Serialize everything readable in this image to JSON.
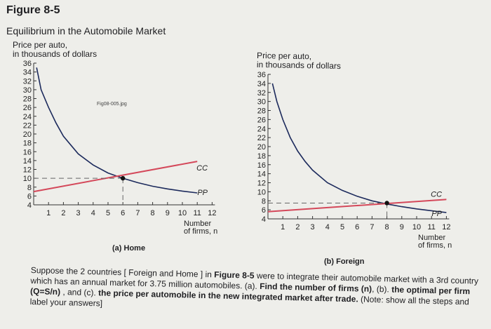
{
  "figure": {
    "title": "Figure 8-5",
    "subtitle": "Equilibrium in the Automobile Market",
    "file_tag": "Fig08-005.jpg"
  },
  "chart_data": [
    {
      "type": "line",
      "panel": "(a) Home",
      "ylabel": [
        "Price per auto,",
        "in thousands of dollars"
      ],
      "xlabel": [
        "Number",
        "of firms, n"
      ],
      "ylim": [
        4,
        36
      ],
      "xlim": [
        0,
        12
      ],
      "yticks": [
        4,
        6,
        8,
        10,
        12,
        14,
        16,
        18,
        20,
        22,
        24,
        26,
        28,
        30,
        32,
        34,
        36
      ],
      "xticks": [
        1,
        2,
        3,
        4,
        5,
        6,
        7,
        8,
        9,
        10,
        11,
        12
      ],
      "series": [
        {
          "name": "CC",
          "color": "#1c2a5c",
          "x": [
            0.2,
            0.5,
            1,
            1.5,
            2,
            2.5,
            3,
            4,
            5,
            6,
            7,
            8,
            9,
            10,
            11
          ],
          "y": [
            35,
            30,
            26,
            22.5,
            19.5,
            17.5,
            15.5,
            13,
            11.2,
            10,
            9,
            8.2,
            7.6,
            7.1,
            6.7
          ]
        },
        {
          "name": "PP",
          "color": "#d4485a",
          "x": [
            0,
            11
          ],
          "y": [
            7,
            13.8
          ]
        }
      ],
      "equilibrium": {
        "x": 6,
        "y": 10
      },
      "curve_labels": {
        "CC": "CC",
        "PP": "PP"
      }
    },
    {
      "type": "line",
      "panel": "(b) Foreign",
      "ylabel": [
        "Price per auto,",
        "in thousands of dollars"
      ],
      "xlabel": [
        "Number",
        "of firms, n"
      ],
      "ylim": [
        4,
        36
      ],
      "xlim": [
        0,
        12
      ],
      "yticks": [
        4,
        6,
        8,
        10,
        12,
        14,
        16,
        18,
        20,
        22,
        24,
        26,
        28,
        30,
        32,
        34,
        36
      ],
      "xticks": [
        1,
        2,
        3,
        4,
        5,
        6,
        7,
        8,
        9,
        10,
        11,
        12
      ],
      "series": [
        {
          "name": "CC",
          "color": "#1c2a5c",
          "x": [
            0.3,
            0.6,
            1,
            1.5,
            2,
            2.5,
            3,
            4,
            5,
            6,
            7,
            8,
            9,
            10,
            11,
            12
          ],
          "y": [
            34,
            30,
            26,
            22,
            19,
            16.7,
            14.8,
            12,
            10.3,
            9,
            8,
            7.3,
            6.7,
            6.2,
            5.8,
            5.4
          ]
        },
        {
          "name": "PP",
          "color": "#d4485a",
          "x": [
            0,
            12
          ],
          "y": [
            5.6,
            8.3
          ]
        }
      ],
      "equilibrium": {
        "x": 8,
        "y": 7.5
      },
      "curve_labels": {
        "CC": "CC",
        "PP": "PP"
      }
    }
  ],
  "question": {
    "intro": "Suppose the 2 countries [ Foreign and Home ] in ",
    "fig_ref": "Figure 8-5",
    "mid1": " were to integrate their automobile market with a 3rd country which has an annual market for 3.75 million automobiles. (a). ",
    "ask_a": "Find the number of firms (n)",
    "mid2": ", (b). ",
    "ask_b": "the optimal per firm (Q=S/n)",
    "mid3": " , and (c). ",
    "ask_c": "the price per automobile in the new integrated market after trade.",
    "note": " (Note: show all the steps and label your answers]"
  }
}
